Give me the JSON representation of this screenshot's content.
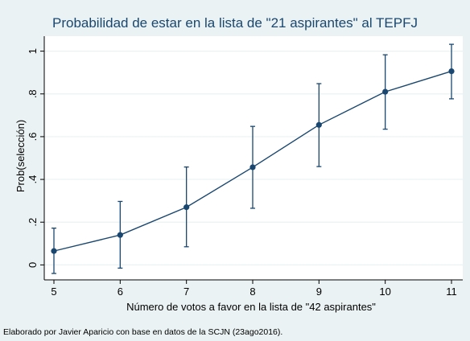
{
  "chart_data": {
    "type": "line",
    "title": "Probabilidad de estar en la lista de \"21 aspirantes\" al TEPFJ",
    "xlabel": "Número de votos a favor en la lista de \"42 aspirantes\"",
    "ylabel": "Prob(selección)",
    "note": "Elaborado por Javier Aparicio con base en datos de la SCJN (23ago2016).",
    "x": [
      5,
      6,
      7,
      8,
      9,
      10,
      11
    ],
    "y": [
      0.065,
      0.14,
      0.27,
      0.457,
      0.655,
      0.81,
      0.906
    ],
    "ci_low": [
      -0.04,
      -0.015,
      0.085,
      0.265,
      0.46,
      0.635,
      0.777
    ],
    "ci_high": [
      0.172,
      0.297,
      0.458,
      0.648,
      0.848,
      0.983,
      1.032
    ],
    "xlim": [
      5,
      11
    ],
    "ylim": [
      -0.07,
      1.07
    ],
    "xticks": [
      5,
      6,
      7,
      8,
      9,
      10,
      11
    ],
    "xtick_labels": [
      "5",
      "6",
      "7",
      "8",
      "9",
      "10",
      "11"
    ],
    "yticks": [
      0,
      0.2,
      0.4,
      0.6,
      0.8,
      1
    ],
    "ytick_labels": [
      "0",
      ".2",
      ".4",
      ".6",
      ".8",
      "1"
    ],
    "grid": true,
    "legend": "none",
    "colors": {
      "line": "#1a476f",
      "marker": "#1a476f",
      "title": "#1a476f",
      "grid": "#eaf2f3",
      "plot_background": "#ffffff",
      "page_background": "#eaf2f3"
    }
  }
}
